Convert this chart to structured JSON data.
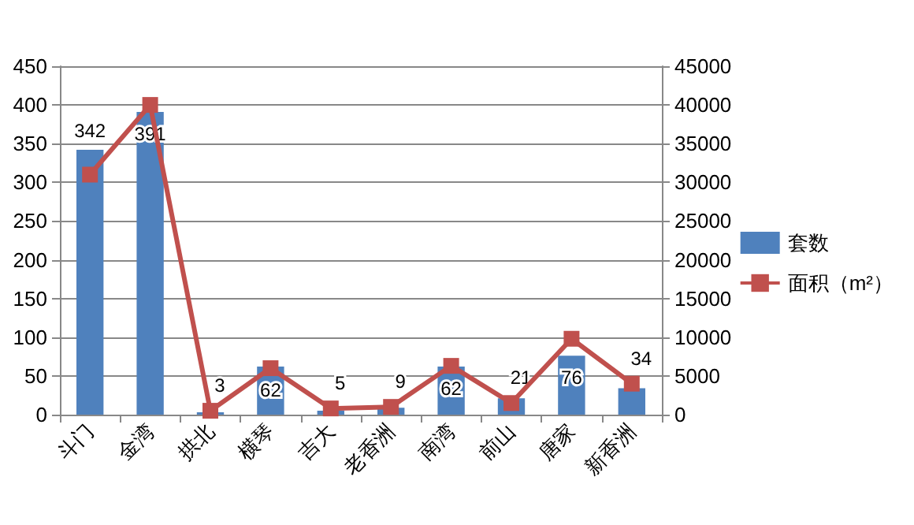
{
  "chart_data": {
    "type": "bar",
    "categories": [
      "斗门",
      "金湾",
      "拱北",
      "横琴",
      "吉大",
      "老香洲",
      "南湾",
      "前山",
      "唐家",
      "新香洲"
    ],
    "series": [
      {
        "name": "套数",
        "color": "#4f81bd",
        "values": [
          342,
          391,
          3,
          62,
          5,
          9,
          62,
          21,
          76,
          34
        ],
        "value_labels": [
          "342",
          "391",
          "3",
          "62",
          "5",
          "9",
          "62",
          "21",
          "76",
          "34"
        ]
      },
      {
        "name": "面积（m²）",
        "type": "line",
        "axis": "y2",
        "color": "#c0504d",
        "marker": "square",
        "values": [
          31000,
          40000,
          500,
          6000,
          800,
          1000,
          6300,
          1500,
          9800,
          4000
        ]
      }
    ],
    "ylim": [
      0,
      450
    ],
    "yticks": [
      0,
      50,
      100,
      150,
      200,
      250,
      300,
      350,
      400,
      450
    ],
    "y2lim": [
      0,
      45000
    ],
    "y2ticks": [
      0,
      5000,
      10000,
      15000,
      20000,
      25000,
      30000,
      35000,
      40000,
      45000
    ],
    "grid": "y",
    "legend": "right"
  }
}
